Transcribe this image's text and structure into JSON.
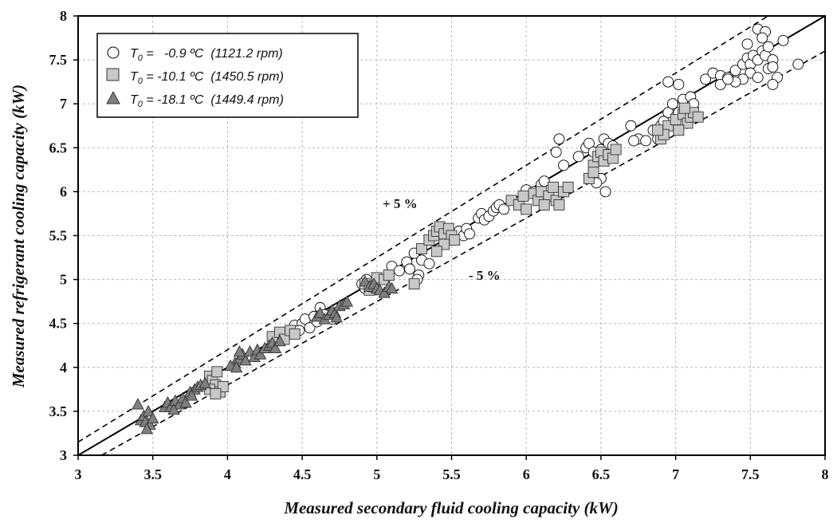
{
  "chart_data": {
    "type": "scatter",
    "title": "",
    "xlabel": "Measured secondary fluid cooling capacity (kW)",
    "ylabel": "Measured refrigerant cooling capacity (kW)",
    "xlim": [
      3,
      8
    ],
    "ylim": [
      3,
      8
    ],
    "x_ticks": [
      "3",
      "3.5",
      "4",
      "4.5",
      "5",
      "5.5",
      "6",
      "6.5",
      "7",
      "7.5",
      "8"
    ],
    "y_ticks": [
      "3",
      "3.5",
      "4",
      "4.5",
      "5",
      "5.5",
      "6",
      "6.5",
      "7",
      "7.5",
      "8"
    ],
    "grid": true,
    "legend_position": "top-left",
    "reference_lines": [
      {
        "name": "",
        "slope": 1.0,
        "style": "solid"
      },
      {
        "name": "+ 5 %",
        "slope": 1.05,
        "style": "dashed"
      },
      {
        "name": "- 5 %",
        "slope": 0.95,
        "style": "dashed"
      }
    ],
    "annotations": [
      "+ 5 %",
      "- 5 %"
    ],
    "series": [
      {
        "name": "T₀ =   -0.9 ºC  (1121.2 rpm)",
        "legend_prefix": "T",
        "legend_sub": "0",
        "legend_rest": " =   -0.9 ºC  (1121.2 rpm)",
        "marker": "circle",
        "color": "#ffffff",
        "points": [
          [
            4.45,
            4.48
          ],
          [
            4.5,
            4.5
          ],
          [
            4.52,
            4.55
          ],
          [
            4.55,
            4.45
          ],
          [
            4.58,
            4.58
          ],
          [
            4.62,
            4.68
          ],
          [
            4.6,
            4.52
          ],
          [
            4.65,
            4.6
          ],
          [
            4.7,
            4.55
          ],
          [
            4.48,
            4.42
          ],
          [
            4.42,
            4.38
          ],
          [
            4.9,
            4.95
          ],
          [
            4.92,
            4.9
          ],
          [
            4.95,
            4.97
          ],
          [
            4.97,
            4.92
          ],
          [
            4.93,
            5.0
          ],
          [
            5.1,
            5.15
          ],
          [
            5.15,
            5.1
          ],
          [
            5.2,
            5.2
          ],
          [
            5.22,
            5.12
          ],
          [
            5.25,
            5.3
          ],
          [
            5.28,
            5.05
          ],
          [
            5.3,
            5.22
          ],
          [
            5.35,
            5.18
          ],
          [
            5.27,
            5.0
          ],
          [
            5.45,
            5.5
          ],
          [
            5.5,
            5.48
          ],
          [
            5.55,
            5.55
          ],
          [
            5.58,
            5.5
          ],
          [
            5.6,
            5.58
          ],
          [
            5.62,
            5.52
          ],
          [
            5.68,
            5.7
          ],
          [
            5.7,
            5.75
          ],
          [
            5.72,
            5.68
          ],
          [
            5.75,
            5.72
          ],
          [
            5.78,
            5.78
          ],
          [
            5.8,
            5.82
          ],
          [
            5.82,
            5.85
          ],
          [
            5.85,
            5.8
          ],
          [
            6.0,
            6.02
          ],
          [
            6.05,
            6.0
          ],
          [
            6.1,
            6.08
          ],
          [
            6.12,
            6.12
          ],
          [
            6.25,
            6.3
          ],
          [
            6.22,
            6.6
          ],
          [
            6.2,
            6.45
          ],
          [
            6.35,
            6.4
          ],
          [
            6.4,
            6.5
          ],
          [
            6.42,
            6.55
          ],
          [
            6.45,
            6.45
          ],
          [
            6.48,
            6.35
          ],
          [
            6.5,
            6.48
          ],
          [
            6.52,
            6.6
          ],
          [
            6.55,
            6.55
          ],
          [
            6.58,
            6.52
          ],
          [
            6.45,
            6.25
          ],
          [
            6.5,
            6.15
          ],
          [
            6.53,
            6.0
          ],
          [
            6.47,
            6.1
          ],
          [
            6.7,
            6.75
          ],
          [
            6.75,
            6.6
          ],
          [
            6.8,
            6.58
          ],
          [
            6.85,
            6.7
          ],
          [
            6.9,
            6.75
          ],
          [
            6.95,
            6.9
          ],
          [
            6.92,
            6.8
          ],
          [
            6.98,
            7.0
          ],
          [
            7.0,
            6.85
          ],
          [
            7.02,
            6.9
          ],
          [
            7.05,
            7.05
          ],
          [
            7.08,
            6.95
          ],
          [
            7.1,
            7.08
          ],
          [
            7.12,
            7.0
          ],
          [
            6.95,
            7.25
          ],
          [
            7.02,
            7.22
          ],
          [
            6.72,
            6.58
          ],
          [
            6.88,
            6.6
          ],
          [
            7.2,
            7.28
          ],
          [
            7.25,
            7.35
          ],
          [
            7.3,
            7.32
          ],
          [
            7.35,
            7.3
          ],
          [
            7.4,
            7.38
          ],
          [
            7.45,
            7.45
          ],
          [
            7.48,
            7.52
          ],
          [
            7.5,
            7.45
          ],
          [
            7.52,
            7.55
          ],
          [
            7.55,
            7.5
          ],
          [
            7.58,
            7.6
          ],
          [
            7.6,
            7.55
          ],
          [
            7.62,
            7.65
          ],
          [
            7.65,
            7.5
          ],
          [
            7.55,
            7.85
          ],
          [
            7.6,
            7.82
          ],
          [
            7.58,
            7.75
          ],
          [
            7.62,
            7.4
          ],
          [
            7.5,
            7.35
          ],
          [
            7.55,
            7.3
          ],
          [
            7.65,
            7.42
          ],
          [
            7.68,
            7.3
          ],
          [
            7.72,
            7.72
          ],
          [
            7.45,
            7.28
          ],
          [
            7.4,
            7.25
          ],
          [
            7.3,
            7.22
          ],
          [
            7.35,
            7.28
          ],
          [
            7.82,
            7.45
          ],
          [
            7.48,
            7.68
          ],
          [
            7.65,
            7.22
          ]
        ]
      },
      {
        "name": "T₀ = -10.1 ºC  (1450.5 rpm)",
        "legend_prefix": "T",
        "legend_sub": "0",
        "legend_rest": " = -10.1 ºC  (1450.5 rpm)",
        "marker": "square",
        "color": "#c8c8c8",
        "points": [
          [
            3.88,
            3.9
          ],
          [
            3.9,
            3.85
          ],
          [
            3.92,
            3.8
          ],
          [
            3.93,
            3.95
          ],
          [
            3.95,
            3.72
          ],
          [
            3.97,
            3.78
          ],
          [
            3.88,
            3.75
          ],
          [
            3.92,
            3.7
          ],
          [
            4.3,
            4.35
          ],
          [
            4.35,
            4.4
          ],
          [
            4.38,
            4.32
          ],
          [
            4.42,
            4.42
          ],
          [
            4.45,
            4.38
          ],
          [
            4.92,
            4.95
          ],
          [
            4.95,
            4.88
          ],
          [
            4.98,
            4.92
          ],
          [
            5.0,
            5.02
          ],
          [
            5.05,
            5.0
          ],
          [
            5.08,
            5.05
          ],
          [
            5.25,
            4.95
          ],
          [
            5.3,
            5.35
          ],
          [
            5.35,
            5.45
          ],
          [
            5.38,
            5.5
          ],
          [
            5.4,
            5.55
          ],
          [
            5.42,
            5.6
          ],
          [
            5.45,
            5.52
          ],
          [
            5.48,
            5.58
          ],
          [
            5.5,
            5.5
          ],
          [
            5.45,
            5.4
          ],
          [
            5.52,
            5.45
          ],
          [
            5.4,
            5.32
          ],
          [
            5.9,
            5.9
          ],
          [
            5.95,
            5.85
          ],
          [
            5.98,
            5.95
          ],
          [
            6.0,
            5.8
          ],
          [
            6.05,
            5.98
          ],
          [
            6.08,
            5.9
          ],
          [
            6.1,
            6.0
          ],
          [
            6.15,
            5.95
          ],
          [
            6.18,
            6.05
          ],
          [
            6.2,
            5.9
          ],
          [
            6.25,
            6.0
          ],
          [
            6.28,
            6.05
          ],
          [
            6.22,
            5.85
          ],
          [
            6.12,
            5.85
          ],
          [
            6.42,
            6.15
          ],
          [
            6.45,
            6.3
          ],
          [
            6.48,
            6.4
          ],
          [
            6.5,
            6.45
          ],
          [
            6.52,
            6.35
          ],
          [
            6.55,
            6.42
          ],
          [
            6.58,
            6.38
          ],
          [
            6.6,
            6.48
          ],
          [
            6.45,
            6.22
          ],
          [
            6.9,
            6.6
          ],
          [
            6.95,
            6.75
          ],
          [
            6.92,
            6.65
          ],
          [
            7.0,
            6.82
          ],
          [
            7.05,
            6.88
          ],
          [
            7.08,
            6.78
          ],
          [
            7.1,
            6.85
          ],
          [
            7.12,
            6.9
          ],
          [
            7.15,
            6.85
          ],
          [
            7.02,
            6.7
          ],
          [
            6.88,
            6.7
          ],
          [
            7.06,
            6.95
          ]
        ]
      },
      {
        "name": "T₀ = -18.1 ºC  (1449.4 rpm)",
        "legend_prefix": "T",
        "legend_sub": "0",
        "legend_rest": " = -18.1 ºC  (1449.4 rpm)",
        "marker": "triangle",
        "color": "#7f7f7f",
        "points": [
          [
            3.4,
            3.58
          ],
          [
            3.42,
            3.4
          ],
          [
            3.44,
            3.45
          ],
          [
            3.45,
            3.38
          ],
          [
            3.47,
            3.5
          ],
          [
            3.48,
            3.35
          ],
          [
            3.5,
            3.42
          ],
          [
            3.46,
            3.3
          ],
          [
            3.58,
            3.55
          ],
          [
            3.6,
            3.6
          ],
          [
            3.62,
            3.55
          ],
          [
            3.65,
            3.62
          ],
          [
            3.68,
            3.58
          ],
          [
            3.7,
            3.65
          ],
          [
            3.72,
            3.6
          ],
          [
            3.75,
            3.72
          ],
          [
            3.78,
            3.75
          ],
          [
            3.8,
            3.78
          ],
          [
            3.82,
            3.8
          ],
          [
            3.85,
            3.82
          ],
          [
            3.76,
            3.68
          ],
          [
            3.64,
            3.52
          ],
          [
            4.05,
            4.05
          ],
          [
            4.08,
            4.1
          ],
          [
            4.1,
            4.15
          ],
          [
            4.12,
            4.08
          ],
          [
            4.15,
            4.18
          ],
          [
            4.18,
            4.12
          ],
          [
            4.2,
            4.2
          ],
          [
            4.22,
            4.15
          ],
          [
            4.25,
            4.22
          ],
          [
            4.28,
            4.25
          ],
          [
            4.3,
            4.28
          ],
          [
            4.32,
            4.22
          ],
          [
            4.35,
            4.3
          ],
          [
            4.02,
            4.02
          ],
          [
            4.06,
            4.0
          ],
          [
            4.08,
            4.18
          ],
          [
            4.6,
            4.58
          ],
          [
            4.62,
            4.62
          ],
          [
            4.65,
            4.55
          ],
          [
            4.68,
            4.6
          ],
          [
            4.7,
            4.65
          ],
          [
            4.72,
            4.62
          ],
          [
            4.75,
            4.7
          ],
          [
            4.78,
            4.72
          ],
          [
            4.8,
            4.75
          ],
          [
            4.73,
            4.57
          ],
          [
            4.92,
            4.98
          ],
          [
            4.95,
            4.92
          ],
          [
            4.98,
            4.95
          ],
          [
            5.0,
            4.9
          ],
          [
            5.02,
            4.88
          ],
          [
            5.05,
            4.85
          ],
          [
            5.08,
            4.92
          ],
          [
            5.1,
            4.9
          ]
        ]
      }
    ]
  }
}
